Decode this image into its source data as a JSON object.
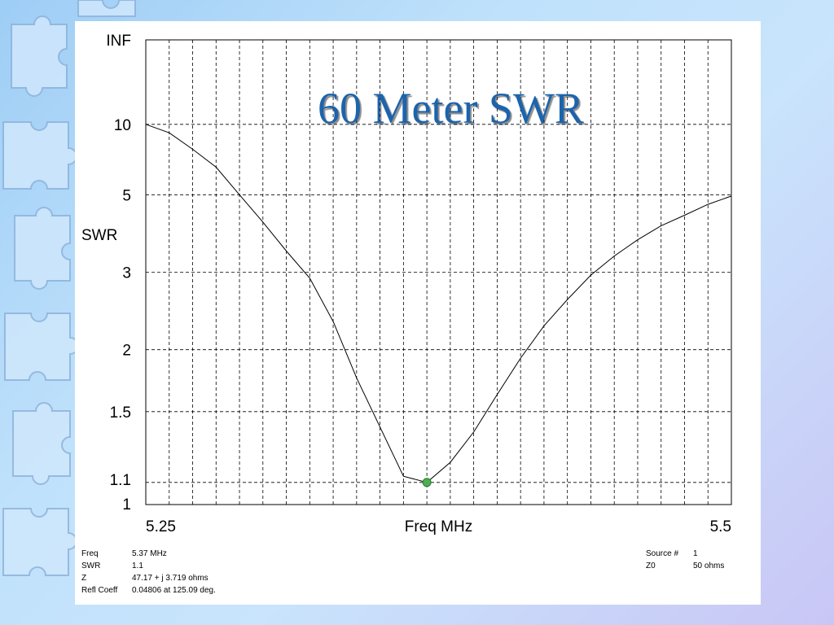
{
  "chart_data": {
    "type": "line",
    "title": "60 Meter SWR",
    "xlabel": "Freq MHz",
    "ylabel": "SWR",
    "x_tick_labels": [
      "5.25",
      "5.5"
    ],
    "xlim": [
      5.25,
      5.5
    ],
    "y_scale": "reflection-coefficient (SWR 1 to INF)",
    "y_tick_labels": [
      "INF",
      "10",
      "5",
      "3",
      "2",
      "1.5",
      "1.1",
      "1"
    ],
    "y_ticks": [
      1,
      1.1,
      1.5,
      2,
      3,
      5,
      10
    ],
    "grid": true,
    "series": [
      {
        "x": [
          5.25,
          5.26,
          5.27,
          5.28,
          5.29,
          5.3,
          5.31,
          5.32,
          5.33,
          5.34,
          5.35,
          5.36,
          5.37,
          5.38,
          5.39,
          5.4,
          5.41,
          5.42,
          5.43,
          5.44,
          5.45,
          5.46,
          5.47,
          5.48,
          5.49,
          5.5
        ],
        "y": [
          10.0,
          9.0,
          7.5,
          6.3,
          5.0,
          4.1,
          3.4,
          2.9,
          2.3,
          1.75,
          1.4,
          1.13,
          1.1,
          1.2,
          1.37,
          1.62,
          1.92,
          2.25,
          2.58,
          2.95,
          3.3,
          3.65,
          4.0,
          4.3,
          4.65,
          4.95
        ]
      }
    ],
    "marker": {
      "x": 5.37,
      "y": 1.1,
      "color": "#4caf50"
    },
    "line_color": "#000000"
  },
  "readout": {
    "freq_label": "Freq",
    "freq_value": "5.37 MHz",
    "swr_label": "SWR",
    "swr_value": "1.1",
    "z_label": "Z",
    "z_value": "47.17 + j 3.719 ohms",
    "refl_label": "Refl Coeff",
    "refl_value": "0.04806 at 125.09 deg.",
    "source_label": "Source #",
    "source_value": "1",
    "z0_label": "Z0",
    "z0_value": "50 ohms"
  }
}
